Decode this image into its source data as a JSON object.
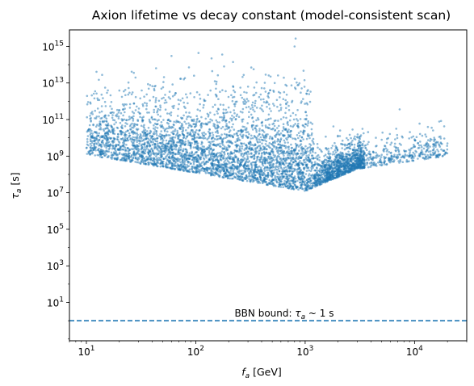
{
  "chart_data": {
    "type": "scatter",
    "title": "Axion lifetime vs decay constant (model-consistent scan)",
    "xlabel": {
      "sym": "f",
      "sub": "a",
      "unit": "[GeV]"
    },
    "ylabel": {
      "sym": "τ",
      "sub": "a",
      "unit": "[s]"
    },
    "xscale": "log",
    "yscale": "log",
    "xlim": [
      7.0,
      30000
    ],
    "ylim": [
      0.08,
      8000000000000000.0
    ],
    "xticks": [
      {
        "exp": "1"
      },
      {
        "exp": "2"
      },
      {
        "exp": "3"
      },
      {
        "exp": "4"
      }
    ],
    "yticks": [
      {
        "exp": "1"
      },
      {
        "exp": "3"
      },
      {
        "exp": "5"
      },
      {
        "exp": "7"
      },
      {
        "exp": "9"
      },
      {
        "exp": "11"
      },
      {
        "exp": "13"
      },
      {
        "exp": "15"
      }
    ],
    "tick_base": "10",
    "point_color": "#1f77b4",
    "point_alpha": 0.5,
    "point_region": {
      "x_range": [
        10,
        20000
      ],
      "y_lower_edge": [
        {
          "x": 10,
          "y": 1200000000.0
        },
        {
          "x": 1000,
          "y": 12000000.0
        },
        {
          "x": 3000,
          "y": 200000000.0
        },
        {
          "x": 20000,
          "y": 1000000000.0
        }
      ],
      "y_upper_typical": 1000000000000.0,
      "sparse_outliers": [
        {
          "x": 800,
          "y": 1000000000000000.0
        },
        {
          "x": 60,
          "y": 300000000000000.0
        },
        {
          "x": 13,
          "y": 15000000000000.0
        },
        {
          "x": 12,
          "y": 300000000000.0
        }
      ]
    },
    "hline": {
      "y": 1,
      "style": "dashed",
      "color": "#1f77b4"
    },
    "annotation": {
      "prefix": "BBN bound: ",
      "sym": "τ",
      "sub": "a",
      "rel": " ~ ",
      "value": "1",
      "unit": "s"
    }
  }
}
